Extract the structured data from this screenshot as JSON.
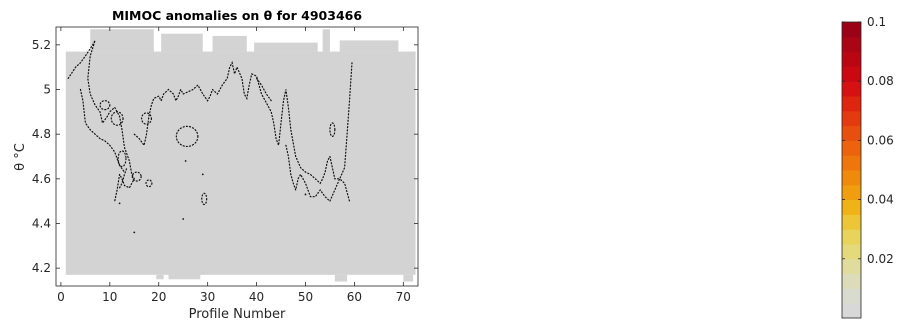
{
  "chart_data": {
    "type": "heatmap",
    "title": "MIMOC anomalies on θ  for 4903466",
    "xlabel": "Profile Number",
    "ylabel": "θ °C",
    "xlim": [
      -1,
      73
    ],
    "ylim": [
      4.12,
      5.28
    ],
    "xticks": [
      0,
      10,
      20,
      30,
      40,
      50,
      60,
      70
    ],
    "yticks": [
      4.2,
      4.4,
      4.6,
      4.8,
      5.0,
      5.2
    ],
    "ytick_labels": [
      "4.2",
      "4.4",
      "4.6",
      "4.8",
      "5",
      "5.2"
    ],
    "field_color": "#d3d3d3",
    "colorbar": {
      "min": 0.0,
      "max": 0.1,
      "ticks": [
        0.02,
        0.04,
        0.06,
        0.08,
        0.1
      ],
      "tick_labels": [
        "0.02",
        "0.04",
        "0.06",
        "0.08",
        "0.1"
      ],
      "colors": [
        "#d8d8d8",
        "#dadbcf",
        "#dcdcba",
        "#e0dc9e",
        "#e4da7c",
        "#e8d45a",
        "#ecc637",
        "#efb318",
        "#f09e0e",
        "#f08a0c",
        "#ef760c",
        "#ec620d",
        "#e84e0e",
        "#e33a0f",
        "#dd2510",
        "#d51211",
        "#c90812",
        "#ba0613",
        "#ab0414",
        "#9c0215"
      ]
    },
    "contour_series": [
      {
        "x": [
          1.5,
          3,
          4,
          5,
          6.5,
          7,
          6,
          5.5,
          6,
          7,
          8,
          8.5,
          9.5,
          10,
          11,
          12,
          12.5,
          13,
          14,
          14.5,
          15,
          14,
          13,
          12.5,
          12,
          11.5,
          11
        ],
        "y": [
          5.05,
          5.1,
          5.12,
          5.15,
          5.2,
          5.22,
          5.15,
          5.05,
          4.98,
          4.93,
          4.9,
          4.85,
          4.88,
          4.9,
          4.92,
          4.88,
          4.82,
          4.74,
          4.68,
          4.62,
          4.6,
          4.56,
          4.57,
          4.6,
          4.62,
          4.55,
          4.5
        ]
      },
      {
        "x": [
          4,
          4.5,
          5,
          6,
          7,
          8,
          9,
          10,
          11,
          12,
          13
        ],
        "y": [
          5.0,
          4.95,
          4.85,
          4.82,
          4.8,
          4.78,
          4.77,
          4.75,
          4.72,
          4.66,
          4.63
        ]
      },
      {
        "x": [
          15,
          16,
          17,
          17.5,
          18,
          18.5,
          19,
          20,
          20.5,
          21,
          22,
          23,
          23.5,
          24,
          24.5,
          25,
          26,
          27,
          28,
          29,
          30,
          30.5,
          31,
          32,
          33,
          34,
          34.5,
          35,
          35.5,
          36,
          37,
          37.5,
          38,
          38.5,
          39,
          40,
          40.5,
          41,
          42,
          43,
          43.5,
          44,
          44.5,
          45,
          45.5,
          46,
          46.5,
          47,
          48,
          49,
          50,
          51,
          52,
          53,
          53.5,
          54,
          54.5,
          55,
          55.5,
          56,
          57,
          58,
          58.5,
          59,
          59.5
        ],
        "y": [
          4.8,
          4.78,
          4.75,
          4.8,
          4.88,
          4.93,
          4.96,
          4.97,
          4.95,
          4.98,
          5.0,
          4.98,
          4.95,
          4.97,
          5.0,
          4.98,
          4.99,
          5.0,
          5.02,
          4.98,
          4.95,
          4.97,
          5.0,
          4.98,
          5.02,
          5.05,
          5.1,
          5.12,
          5.07,
          5.1,
          5.05,
          4.98,
          4.96,
          5.02,
          5.07,
          5.06,
          5.02,
          4.98,
          4.94,
          4.9,
          4.85,
          4.78,
          4.75,
          4.85,
          4.95,
          5.0,
          4.92,
          4.82,
          4.7,
          4.65,
          4.63,
          4.62,
          4.6,
          4.58,
          4.6,
          4.63,
          4.68,
          4.7,
          4.65,
          4.6,
          4.6,
          4.65,
          4.8,
          4.95,
          5.12
        ]
      },
      {
        "x": [
          46,
          46.5,
          47,
          47.5,
          48,
          48.5,
          49,
          50,
          51,
          52,
          53,
          54,
          55,
          56,
          57,
          58,
          59
        ],
        "y": [
          4.75,
          4.7,
          4.62,
          4.58,
          4.55,
          4.6,
          4.62,
          4.58,
          4.52,
          4.52,
          4.55,
          4.52,
          4.5,
          4.55,
          4.6,
          4.58,
          4.5
        ]
      },
      {
        "x": [
          40,
          41,
          42,
          43
        ],
        "y": [
          5.05,
          5.02,
          4.98,
          4.95
        ]
      },
      {
        "x": [
          12,
          12.5,
          13,
          13.5
        ],
        "y": [
          4.56,
          4.58,
          4.62,
          4.65
        ]
      }
    ],
    "contour_loops": [
      {
        "cx": 25.8,
        "cy": 4.79,
        "rx": 2.2,
        "ry": 0.045
      },
      {
        "cx": 11.5,
        "cy": 4.87,
        "rx": 1.2,
        "ry": 0.03
      },
      {
        "cx": 9.0,
        "cy": 4.93,
        "rx": 1.0,
        "ry": 0.02
      },
      {
        "cx": 17.5,
        "cy": 4.87,
        "rx": 1.0,
        "ry": 0.025
      },
      {
        "cx": 15.5,
        "cy": 4.61,
        "rx": 0.9,
        "ry": 0.02
      },
      {
        "cx": 18.0,
        "cy": 4.58,
        "rx": 0.6,
        "ry": 0.015
      },
      {
        "cx": 29.3,
        "cy": 4.51,
        "rx": 0.5,
        "ry": 0.025
      },
      {
        "cx": 12.5,
        "cy": 4.69,
        "rx": 0.8,
        "ry": 0.035
      },
      {
        "cx": 55.5,
        "cy": 4.82,
        "rx": 0.5,
        "ry": 0.03
      }
    ],
    "contour_dots": [
      {
        "x": 12,
        "y": 4.49
      },
      {
        "x": 15,
        "y": 4.36
      },
      {
        "x": 25,
        "y": 4.42
      },
      {
        "x": 29,
        "y": 4.62
      },
      {
        "x": 50,
        "y": 4.53
      },
      {
        "x": 25.5,
        "y": 4.68
      }
    ]
  }
}
